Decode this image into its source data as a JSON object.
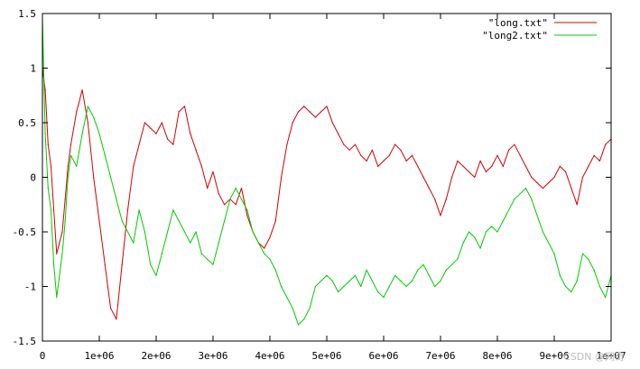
{
  "chart_data": {
    "type": "line",
    "title": "",
    "xlabel": "",
    "ylabel": "",
    "xlim": [
      0,
      10000000
    ],
    "ylim": [
      -1.5,
      1.5
    ],
    "grid": false,
    "legend_position": "top-right",
    "x_ticks": [
      {
        "value": 0,
        "label": "0"
      },
      {
        "value": 1000000,
        "label": "1e+06"
      },
      {
        "value": 2000000,
        "label": "2e+06"
      },
      {
        "value": 3000000,
        "label": "3e+06"
      },
      {
        "value": 4000000,
        "label": "4e+06"
      },
      {
        "value": 5000000,
        "label": "5e+06"
      },
      {
        "value": 6000000,
        "label": "6e+06"
      },
      {
        "value": 7000000,
        "label": "7e+06"
      },
      {
        "value": 8000000,
        "label": "8e+06"
      },
      {
        "value": 9000000,
        "label": "9e+06"
      },
      {
        "value": 10000000,
        "label": "1e+07"
      }
    ],
    "y_ticks": [
      {
        "value": 1.5,
        "label": "1.5"
      },
      {
        "value": 1,
        "label": "1"
      },
      {
        "value": 0.5,
        "label": "0.5"
      },
      {
        "value": 0,
        "label": "0"
      },
      {
        "value": -0.5,
        "label": "-0.5"
      },
      {
        "value": -1,
        "label": "-1"
      },
      {
        "value": -1.5,
        "label": "-1.5"
      }
    ],
    "series": [
      {
        "name": "\"long.txt\"",
        "color": "#d40000",
        "x": [
          0,
          50000,
          100000,
          150000,
          200000,
          250000,
          300000,
          350000,
          400000,
          450000,
          500000,
          600000,
          700000,
          800000,
          900000,
          1000000,
          1100000,
          1200000,
          1300000,
          1400000,
          1500000,
          1600000,
          1700000,
          1800000,
          1900000,
          2000000,
          2100000,
          2200000,
          2300000,
          2400000,
          2500000,
          2600000,
          2700000,
          2800000,
          2900000,
          3000000,
          3100000,
          3200000,
          3300000,
          3400000,
          3500000,
          3600000,
          3700000,
          3800000,
          3900000,
          4000000,
          4100000,
          4200000,
          4300000,
          4400000,
          4500000,
          4600000,
          4700000,
          4800000,
          4900000,
          5000000,
          5100000,
          5200000,
          5300000,
          5400000,
          5500000,
          5600000,
          5700000,
          5800000,
          5900000,
          6000000,
          6100000,
          6200000,
          6300000,
          6400000,
          6500000,
          6600000,
          6700000,
          6800000,
          6900000,
          7000000,
          7100000,
          7200000,
          7300000,
          7400000,
          7500000,
          7600000,
          7700000,
          7800000,
          7900000,
          8000000,
          8100000,
          8200000,
          8300000,
          8400000,
          8500000,
          8600000,
          8700000,
          8800000,
          8900000,
          9000000,
          9100000,
          9200000,
          9300000,
          9400000,
          9500000,
          9600000,
          9700000,
          9800000,
          9900000,
          10000000
        ],
        "y": [
          1.0,
          0.8,
          0.3,
          0.1,
          -0.3,
          -0.7,
          -0.6,
          -0.5,
          -0.2,
          0.1,
          0.3,
          0.6,
          0.8,
          0.5,
          0.0,
          -0.4,
          -0.8,
          -1.2,
          -1.3,
          -0.8,
          -0.3,
          0.1,
          0.3,
          0.5,
          0.45,
          0.4,
          0.5,
          0.35,
          0.3,
          0.6,
          0.65,
          0.4,
          0.25,
          0.1,
          -0.1,
          0.05,
          -0.15,
          -0.25,
          -0.2,
          -0.25,
          -0.1,
          -0.35,
          -0.5,
          -0.6,
          -0.65,
          -0.55,
          -0.4,
          0.0,
          0.3,
          0.5,
          0.6,
          0.65,
          0.6,
          0.55,
          0.6,
          0.65,
          0.5,
          0.4,
          0.3,
          0.25,
          0.3,
          0.2,
          0.15,
          0.25,
          0.1,
          0.15,
          0.2,
          0.3,
          0.25,
          0.15,
          0.2,
          0.1,
          0.0,
          -0.1,
          -0.2,
          -0.35,
          -0.2,
          0.0,
          0.15,
          0.1,
          0.05,
          0.0,
          0.15,
          0.05,
          0.1,
          0.2,
          0.1,
          0.25,
          0.3,
          0.2,
          0.1,
          0.0,
          -0.05,
          -0.1,
          -0.05,
          0.0,
          0.1,
          0.05,
          -0.1,
          -0.25,
          0.0,
          0.1,
          0.2,
          0.15,
          0.3,
          0.35
        ]
      },
      {
        "name": "\"long2.txt\"",
        "color": "#00cc00",
        "x": [
          0,
          50000,
          100000,
          150000,
          200000,
          250000,
          300000,
          350000,
          400000,
          450000,
          500000,
          600000,
          700000,
          800000,
          900000,
          1000000,
          1100000,
          1200000,
          1300000,
          1400000,
          1500000,
          1600000,
          1700000,
          1800000,
          1900000,
          2000000,
          2100000,
          2200000,
          2300000,
          2400000,
          2500000,
          2600000,
          2700000,
          2800000,
          2900000,
          3000000,
          3100000,
          3200000,
          3300000,
          3400000,
          3500000,
          3600000,
          3700000,
          3800000,
          3900000,
          4000000,
          4100000,
          4200000,
          4300000,
          4400000,
          4500000,
          4600000,
          4700000,
          4800000,
          4900000,
          5000000,
          5100000,
          5200000,
          5300000,
          5400000,
          5500000,
          5600000,
          5700000,
          5800000,
          5900000,
          6000000,
          6100000,
          6200000,
          6300000,
          6400000,
          6500000,
          6600000,
          6700000,
          6800000,
          6900000,
          7000000,
          7100000,
          7200000,
          7300000,
          7400000,
          7500000,
          7600000,
          7700000,
          7800000,
          7900000,
          8000000,
          8100000,
          8200000,
          8300000,
          8400000,
          8500000,
          8600000,
          8700000,
          8800000,
          8900000,
          9000000,
          9100000,
          9200000,
          9300000,
          9400000,
          9500000,
          9600000,
          9700000,
          9800000,
          9900000,
          10000000
        ],
        "y": [
          1.45,
          0.4,
          -0.1,
          -0.3,
          -0.8,
          -1.1,
          -0.9,
          -0.7,
          -0.4,
          0.0,
          0.2,
          0.1,
          0.4,
          0.65,
          0.55,
          0.4,
          0.2,
          0.0,
          -0.2,
          -0.4,
          -0.5,
          -0.6,
          -0.3,
          -0.5,
          -0.8,
          -0.9,
          -0.7,
          -0.5,
          -0.3,
          -0.4,
          -0.5,
          -0.6,
          -0.5,
          -0.7,
          -0.75,
          -0.8,
          -0.6,
          -0.4,
          -0.2,
          -0.1,
          -0.2,
          -0.3,
          -0.5,
          -0.6,
          -0.7,
          -0.75,
          -0.85,
          -1.0,
          -1.1,
          -1.2,
          -1.35,
          -1.3,
          -1.2,
          -1.0,
          -0.95,
          -0.9,
          -0.95,
          -1.05,
          -1.0,
          -0.95,
          -0.9,
          -1.0,
          -0.85,
          -0.95,
          -1.05,
          -1.1,
          -1.0,
          -0.9,
          -0.95,
          -1.0,
          -0.95,
          -0.85,
          -0.8,
          -0.9,
          -1.0,
          -0.95,
          -0.85,
          -0.8,
          -0.75,
          -0.6,
          -0.5,
          -0.55,
          -0.65,
          -0.5,
          -0.45,
          -0.5,
          -0.4,
          -0.3,
          -0.2,
          -0.15,
          -0.1,
          -0.2,
          -0.35,
          -0.5,
          -0.6,
          -0.7,
          -0.9,
          -1.0,
          -1.05,
          -0.95,
          -0.7,
          -0.75,
          -0.85,
          -1.0,
          -1.1,
          -0.9
        ]
      }
    ],
    "watermark": "CSDN @网奇"
  }
}
